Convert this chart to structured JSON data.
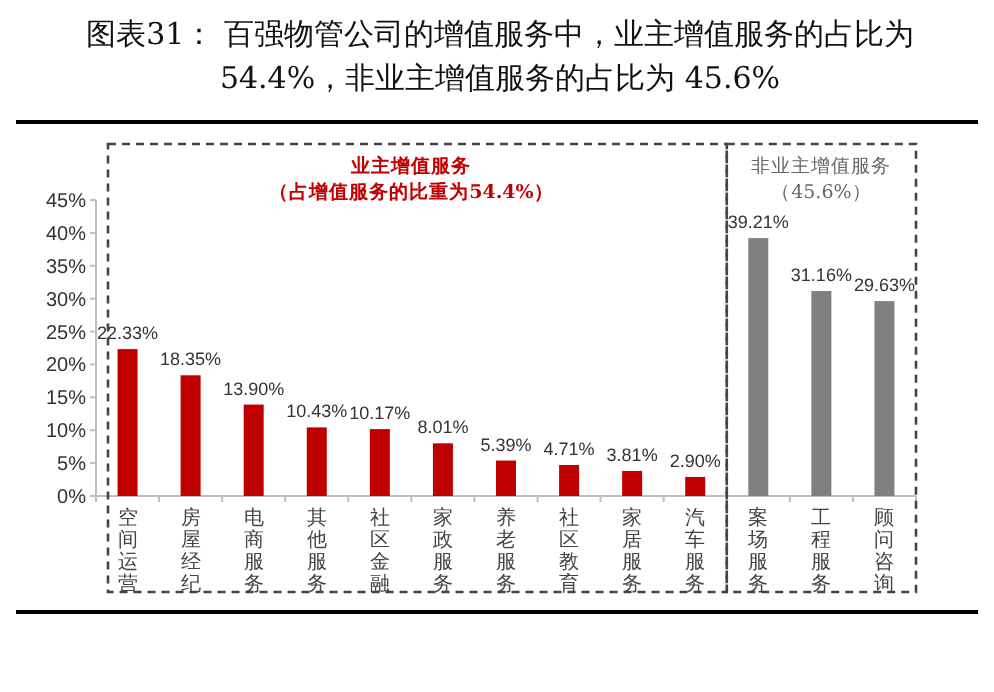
{
  "chart_data": {
    "type": "bar",
    "title": "图表31：    百强物管公司的增值服务中，业主增值服务的占比为54.4%，非业主增值服务的占比为 45.6%",
    "categories": [
      "空间运营",
      "房屋经纪",
      "电商服务",
      "其他服务",
      "社区金融",
      "家政服务",
      "养老服务",
      "社区教育",
      "家居服务",
      "汽车服务",
      "案场服务",
      "工程服务",
      "顾问咨询"
    ],
    "values": [
      22.33,
      18.35,
      13.9,
      10.43,
      10.17,
      8.01,
      5.39,
      4.71,
      3.81,
      2.9,
      39.21,
      31.16,
      29.63
    ],
    "colors": [
      "#c00000",
      "#c00000",
      "#c00000",
      "#c00000",
      "#c00000",
      "#c00000",
      "#c00000",
      "#c00000",
      "#c00000",
      "#c00000",
      "#808080",
      "#808080",
      "#808080"
    ],
    "value_labels": [
      "22.33%",
      "18.35%",
      "13.90%",
      "10.43%",
      "10.17%",
      "8.01%",
      "5.39%",
      "4.71%",
      "3.81%",
      "2.90%",
      "39.21%",
      "31.16%",
      "29.63%"
    ],
    "ylim": [
      0,
      45
    ],
    "yticks": [
      {
        "value": 0,
        "label": "0%"
      },
      {
        "value": 5,
        "label": "5%"
      },
      {
        "value": 10,
        "label": "10%"
      },
      {
        "value": 15,
        "label": "15%"
      },
      {
        "value": 20,
        "label": "20%"
      },
      {
        "value": 25,
        "label": "25%"
      },
      {
        "value": 30,
        "label": "30%"
      },
      {
        "value": 35,
        "label": "35%"
      },
      {
        "value": 40,
        "label": "40%"
      },
      {
        "value": 45,
        "label": "45%"
      }
    ],
    "grid": false,
    "annotations": [
      "业主增值服务",
      "（占增值服务的比重为54.4%）",
      "非业主增值服务",
      "（45.6%）"
    ]
  }
}
